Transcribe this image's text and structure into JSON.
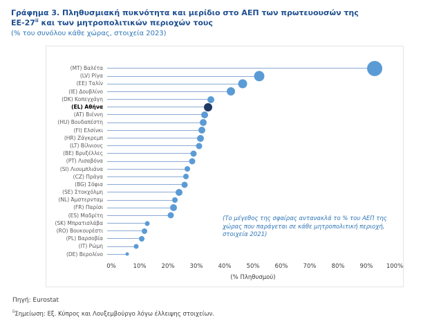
{
  "header": {
    "title_main": "Γράφημα 3. Πληθυσμιακή πυκνότητα και μερίδιο στο ΑΕΠ των πρωτευουσών της ΕΕ-27",
    "title_sup": "ii",
    "title_rest": " και των μητροπολιτικών περιοχών τους",
    "subtitle": "(% του συνόλου κάθε χώρας, στοιχεία 2023)"
  },
  "chart_data": {
    "type": "scatter",
    "variant": "lollipop-bubble",
    "title": "Πληθυσμιακή πυκνότητα και μερίδιο στο ΑΕΠ των πρωτευουσών της ΕΕ-27 και των μητροπολιτικών περιοχών τους",
    "xlabel": "(% Πληθυσμού)",
    "xlim": [
      0,
      100
    ],
    "x_ticks": [
      "0%",
      "10%",
      "20%",
      "30%",
      "40%",
      "50%",
      "60%",
      "70%",
      "80%",
      "90%",
      "100%"
    ],
    "size_meaning": "Το μέγεθος της σφαίρας αντανακλά το % του ΑΕΠ της χώρας που παράγεται σε κάθε μητροπολιτική περιοχή (στοιχεία 2021)",
    "annotation": "(Το μέγεθος της σφαίρας αντανακλά το % του ΑΕΠ της χώρας που παράγεται σε κάθε μητροπολιτική περιοχή, στοιχεία 2021)",
    "points": [
      {
        "label": "(MT) Βαλέτα",
        "x": 93,
        "size": 22
      },
      {
        "label": "(LV) Ρίγα",
        "x": 53,
        "size": 15
      },
      {
        "label": "(EE) Ταλίν",
        "x": 47,
        "size": 13
      },
      {
        "label": "(IE) Δουβλίνο",
        "x": 43,
        "size": 12
      },
      {
        "label": "(DK) Κοπεγχάγη",
        "x": 36,
        "size": 10
      },
      {
        "label": "(EL) Αθήνα",
        "x": 35,
        "size": 12,
        "highlight": true
      },
      {
        "label": "(AT) Βιέννη",
        "x": 34,
        "size": 10
      },
      {
        "label": "(HU) Βουδαπέστη",
        "x": 33.5,
        "size": 10
      },
      {
        "label": "(FI) Ελσίνκι",
        "x": 33,
        "size": 10
      },
      {
        "label": "(HR) Ζάγκρεμπ",
        "x": 32.5,
        "size": 10
      },
      {
        "label": "(LT) Βίλνιους",
        "x": 32,
        "size": 9
      },
      {
        "label": "(BE) Βρυξέλλες",
        "x": 30,
        "size": 9
      },
      {
        "label": "(PT) Λισαβόνα",
        "x": 29.5,
        "size": 9
      },
      {
        "label": "(SI) Λιουμπλιάνα",
        "x": 28,
        "size": 8
      },
      {
        "label": "(CZ) Πράγα",
        "x": 27.5,
        "size": 8
      },
      {
        "label": "(BG) Σόφια",
        "x": 27,
        "size": 9
      },
      {
        "label": "(SE) Στοκχόλμη",
        "x": 25,
        "size": 10
      },
      {
        "label": "(NL) Άμστερνταμ",
        "x": 23.5,
        "size": 8
      },
      {
        "label": "(FR) Παρίσι",
        "x": 23,
        "size": 10
      },
      {
        "label": "(ES) Μαδρίτη",
        "x": 22,
        "size": 9
      },
      {
        "label": "(SK) Μπρατισλάβα",
        "x": 14,
        "size": 7
      },
      {
        "label": "(RO) Βουκουρέστι",
        "x": 13,
        "size": 8
      },
      {
        "label": "(PL) Βαρσοβία",
        "x": 12,
        "size": 8
      },
      {
        "label": "(IT) Ρώμη",
        "x": 10,
        "size": 7
      },
      {
        "label": "(DE) Βερολίνο",
        "x": 7,
        "size": 5
      }
    ]
  },
  "footer": {
    "source": "Πηγή: Eurostat",
    "note_sup": "ii",
    "note_text": "Σημείωση: Εξ. Κύπρος και Λουξεμβούργο λόγω έλλειψης στοιχείων."
  },
  "colors": {
    "title": "#1e4e8f",
    "subtitle": "#2e75b6",
    "line": "#89a9d4",
    "bubble": "#5b9bd5",
    "bubble_highlight": "#1f3864"
  }
}
